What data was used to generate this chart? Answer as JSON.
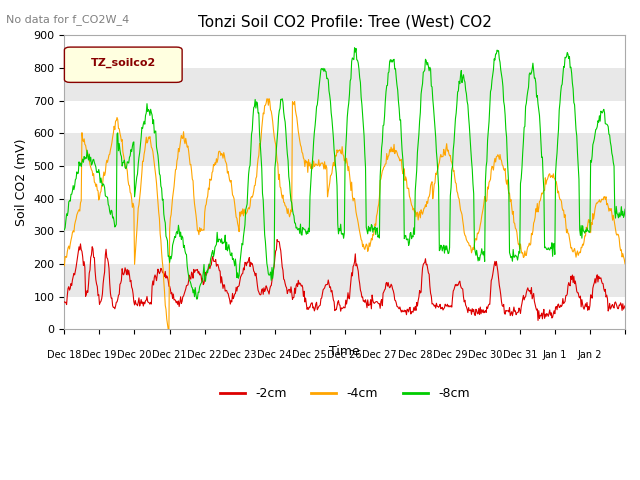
{
  "title": "Tonzi Soil CO2 Profile: Tree (West) CO2",
  "subtitle": "No data for f_CO2W_4",
  "ylabel": "Soil CO2 (mV)",
  "xlabel": "Time",
  "legend_label": "TZ_soilco2",
  "ylim": [
    0,
    900
  ],
  "line_colors": {
    "-2cm": "#dd0000",
    "-4cm": "#ffa500",
    "-8cm": "#00cc00"
  },
  "legend_entries": [
    "-2cm",
    "-4cm",
    "-8cm"
  ],
  "yticks": [
    0,
    100,
    200,
    300,
    400,
    500,
    600,
    700,
    800,
    900
  ],
  "bg_color": "#ffffff",
  "plot_bg_color": "#e8e8e8",
  "band_color": "#ffffff"
}
